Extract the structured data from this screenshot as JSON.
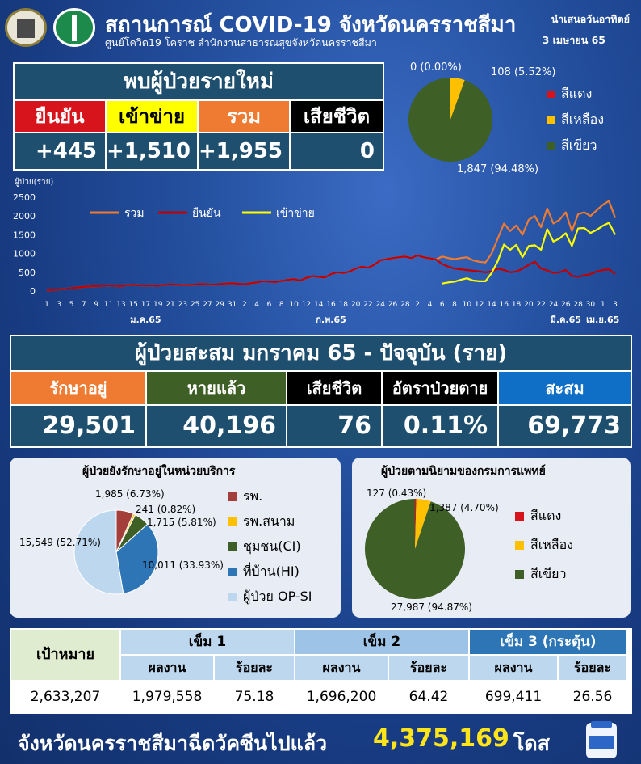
{
  "header": {
    "title": "สถานการณ์ COVID-19 จังหวัดนครราชสีมา",
    "subtitle": "ศูนย์โควิด19 โคราช สำนักงานสาธารณสุขจังหวัดนครราชสีมา",
    "date_line1": "นำเสนอวันอาทิตย์",
    "date_line2": "3 เมษายน 65"
  },
  "new_cases": {
    "heading": "พบผู้ป่วยรายใหม่",
    "columns": [
      {
        "label": "ยืนยัน",
        "value": "+445",
        "bg": "#d7141b",
        "fg": "#ffffff"
      },
      {
        "label": "เข้าข่าย",
        "value": "+1,510",
        "bg": "#ffff00",
        "fg": "#000000"
      },
      {
        "label": "รวม",
        "value": "+1,955",
        "bg": "#ee7b31",
        "fg": "#ffffff"
      },
      {
        "label": "เสียชีวิต",
        "value": "0",
        "bg": "#000000",
        "fg": "#ffffff"
      }
    ]
  },
  "top_pie": {
    "legend": [
      {
        "label": "สีแดง",
        "color": "#d7141b"
      },
      {
        "label": "สีเหลือง",
        "color": "#ffc000"
      },
      {
        "label": "สีเขียว",
        "color": "#3e5f25"
      }
    ],
    "labels": [
      "0 (0.00%)",
      "108 (5.52%)",
      "1,847 (94.48%)"
    ]
  },
  "accumulated": {
    "heading": "ผู้ป่วยสะสม มกราคม 65 - ปัจจุบัน (ราย)",
    "columns": [
      {
        "label": "รักษาอยู่",
        "value": "29,501",
        "bg": "#ee7b31"
      },
      {
        "label": "หายแล้ว",
        "value": "40,196",
        "bg": "#3e5f25"
      },
      {
        "label": "เสียชีวิต",
        "value": "76",
        "bg": "#000000"
      },
      {
        "label": "อัตราป่วยตาย",
        "value": "0.11%",
        "bg": "#000000"
      },
      {
        "label": "สะสม",
        "value": "69,773",
        "bg": "#0f6fc6"
      }
    ]
  },
  "panel_left": {
    "title": "ผู้ป่วยยังรักษาอยู่ในหน่วยบริการ",
    "labels": [
      "1,985 (6.73%)",
      "241 (0.82%)",
      "1,715 (5.81%)",
      "10,011 (33.93%)",
      "15,549 (52.71%)"
    ],
    "legend": [
      {
        "label": "รพ.",
        "color": "#a33e3b"
      },
      {
        "label": "รพ.สนาม",
        "color": "#ffc000"
      },
      {
        "label": "ชุมชน(CI)",
        "color": "#3e5f25"
      },
      {
        "label": "ที่บ้าน(HI)",
        "color": "#2e75b6"
      },
      {
        "label": "ผู้ป่วย OP-SI",
        "color": "#bdd7ee"
      }
    ]
  },
  "panel_right": {
    "title": "ผู้ป่วยตามนิยามของกรมการแพทย์",
    "labels": [
      "127 (0.43%)",
      "1,387 (4.70%)",
      "27,987 (94.87%)"
    ],
    "legend": [
      {
        "label": "สีแดง",
        "color": "#d7141b"
      },
      {
        "label": "สีเหลือง",
        "color": "#ffc000"
      },
      {
        "label": "สีเขียว",
        "color": "#3e5f25"
      }
    ]
  },
  "vaccine": {
    "goal_label": "เป้าหมาย",
    "goal_value": "2,633,207",
    "doses": [
      {
        "label": "เข็ม 1",
        "bg": "#bdd7ee",
        "work_label": "ผลงาน",
        "pct_label": "ร้อยละ",
        "work": "1,979,558",
        "pct": "75.18"
      },
      {
        "label": "เข็ม 2",
        "bg": "#9dc3e6",
        "work_label": "ผลงาน",
        "pct_label": "ร้อยละ",
        "work": "1,696,200",
        "pct": "64.42"
      },
      {
        "label": "เข็ม 3 (กระตุ้น)",
        "bg": "#2e75b6",
        "work_label": "ผลงาน",
        "pct_label": "ร้อยละ",
        "work": "699,411",
        "pct": "26.56"
      }
    ]
  },
  "footer": {
    "text": "จังหวัดนครราชสีมาฉีดวัคซีนไปแล้ว",
    "total": "4,375,169",
    "unit": "โดส"
  },
  "chart_data": [
    {
      "type": "line",
      "ylabel": "ผู้ป่วย(ราย)",
      "ylim": [
        0,
        2500
      ],
      "yticks": [
        0,
        500,
        1000,
        1500,
        2000,
        2500
      ],
      "xtick_labels": [
        "1",
        "3",
        "5",
        "7",
        "9",
        "11",
        "13",
        "15",
        "17",
        "19",
        "21",
        "23",
        "25",
        "27",
        "29",
        "31",
        "2",
        "4",
        "6",
        "8",
        "10",
        "12",
        "14",
        "16",
        "18",
        "20",
        "22",
        "24",
        "26",
        "28",
        "2",
        "4",
        "6",
        "8",
        "10",
        "12",
        "14",
        "16",
        "18",
        "20",
        "22",
        "24",
        "26",
        "28",
        "30",
        "1",
        "3"
      ],
      "month_labels": [
        {
          "label": "ม.ค.65",
          "at_tick": 8
        },
        {
          "label": "ก.พ.65",
          "at_tick": 23
        },
        {
          "label": "มี.ค.65",
          "at_tick": 42
        },
        {
          "label": "เม.ย.65",
          "at_tick": 45
        }
      ],
      "legend": [
        {
          "name": "รวม",
          "color": "#ee7b31"
        },
        {
          "name": "ยืนยัน",
          "color": "#c00000"
        },
        {
          "name": "เข้าข่าย",
          "color": "#ffff00"
        }
      ],
      "n_days": 93,
      "series": [
        {
          "name": "รวม",
          "color": "#ee7b31",
          "values": [
            15,
            25,
            40,
            60,
            80,
            95,
            110,
            125,
            130,
            140,
            150,
            140,
            130,
            155,
            160,
            150,
            145,
            150,
            140,
            165,
            180,
            170,
            155,
            160,
            175,
            190,
            180,
            170,
            185,
            200,
            210,
            195,
            180,
            210,
            230,
            260,
            250,
            240,
            270,
            300,
            320,
            280,
            350,
            400,
            380,
            360,
            450,
            500,
            480,
            520,
            600,
            650,
            620,
            700,
            820,
            850,
            880,
            900,
            920,
            880,
            950,
            900,
            870,
            840,
            920,
            880,
            850,
            880,
            900,
            820,
            780,
            760,
            1000,
            1400,
            1800,
            1600,
            1750,
            1500,
            1900,
            2000,
            1700,
            2200,
            1800,
            1900,
            2100,
            1600,
            2050,
            2100,
            2000,
            2150,
            2300,
            2400,
            1950
          ]
        },
        {
          "name": "ยืนยัน",
          "color": "#c00000",
          "values": [
            15,
            25,
            40,
            60,
            80,
            95,
            110,
            125,
            130,
            140,
            150,
            140,
            130,
            155,
            160,
            150,
            145,
            150,
            140,
            165,
            180,
            170,
            155,
            160,
            175,
            190,
            180,
            170,
            185,
            200,
            210,
            195,
            180,
            210,
            230,
            260,
            250,
            240,
            270,
            300,
            320,
            280,
            350,
            400,
            380,
            360,
            450,
            500,
            480,
            520,
            600,
            650,
            620,
            700,
            820,
            850,
            880,
            900,
            920,
            880,
            950,
            900,
            870,
            840,
            720,
            650,
            600,
            580,
            560,
            540,
            520,
            500,
            520,
            600,
            560,
            500,
            520,
            600,
            700,
            780,
            600,
            550,
            480,
            500,
            560,
            400,
            380,
            420,
            450,
            520,
            560,
            580,
            450
          ]
        },
        {
          "name": "เข้าข่าย",
          "color": "#ffff00",
          "values": [
            null,
            null,
            null,
            null,
            null,
            null,
            null,
            null,
            null,
            null,
            null,
            null,
            null,
            null,
            null,
            null,
            null,
            null,
            null,
            null,
            null,
            null,
            null,
            null,
            null,
            null,
            null,
            null,
            null,
            null,
            null,
            null,
            null,
            null,
            null,
            null,
            null,
            null,
            null,
            null,
            null,
            null,
            null,
            null,
            null,
            null,
            null,
            null,
            null,
            null,
            null,
            null,
            null,
            null,
            null,
            null,
            null,
            null,
            null,
            null,
            null,
            null,
            null,
            null,
            200,
            230,
            250,
            300,
            340,
            280,
            260,
            260,
            480,
            800,
            1240,
            1100,
            1230,
            900,
            1200,
            1220,
            1100,
            1650,
            1320,
            1400,
            1540,
            1200,
            1670,
            1680,
            1550,
            1630,
            1740,
            1820,
            1500
          ]
        }
      ]
    },
    {
      "type": "pie",
      "slices": [
        {
          "label": "สีแดง",
          "value": 0,
          "percent": 0.0
        },
        {
          "label": "สีเหลือง",
          "value": 108,
          "percent": 5.52
        },
        {
          "label": "สีเขียว",
          "value": 1847,
          "percent": 94.48
        }
      ]
    },
    {
      "type": "pie",
      "title": "ผู้ป่วยยังรักษาอยู่ในหน่วยบริการ",
      "slices": [
        {
          "label": "รพ.",
          "value": 1985,
          "percent": 6.73
        },
        {
          "label": "รพ.สนาม",
          "value": 241,
          "percent": 0.82
        },
        {
          "label": "ชุมชน(CI)",
          "value": 1715,
          "percent": 5.81
        },
        {
          "label": "ที่บ้าน(HI)",
          "value": 10011,
          "percent": 33.93
        },
        {
          "label": "ผู้ป่วย OP-SI",
          "value": 15549,
          "percent": 52.71
        }
      ]
    },
    {
      "type": "pie",
      "title": "ผู้ป่วยตามนิยามของกรมการแพทย์",
      "slices": [
        {
          "label": "สีแดง",
          "value": 127,
          "percent": 0.43
        },
        {
          "label": "สีเหลือง",
          "value": 1387,
          "percent": 4.7
        },
        {
          "label": "สีเขียว",
          "value": 27987,
          "percent": 94.87
        }
      ]
    }
  ]
}
